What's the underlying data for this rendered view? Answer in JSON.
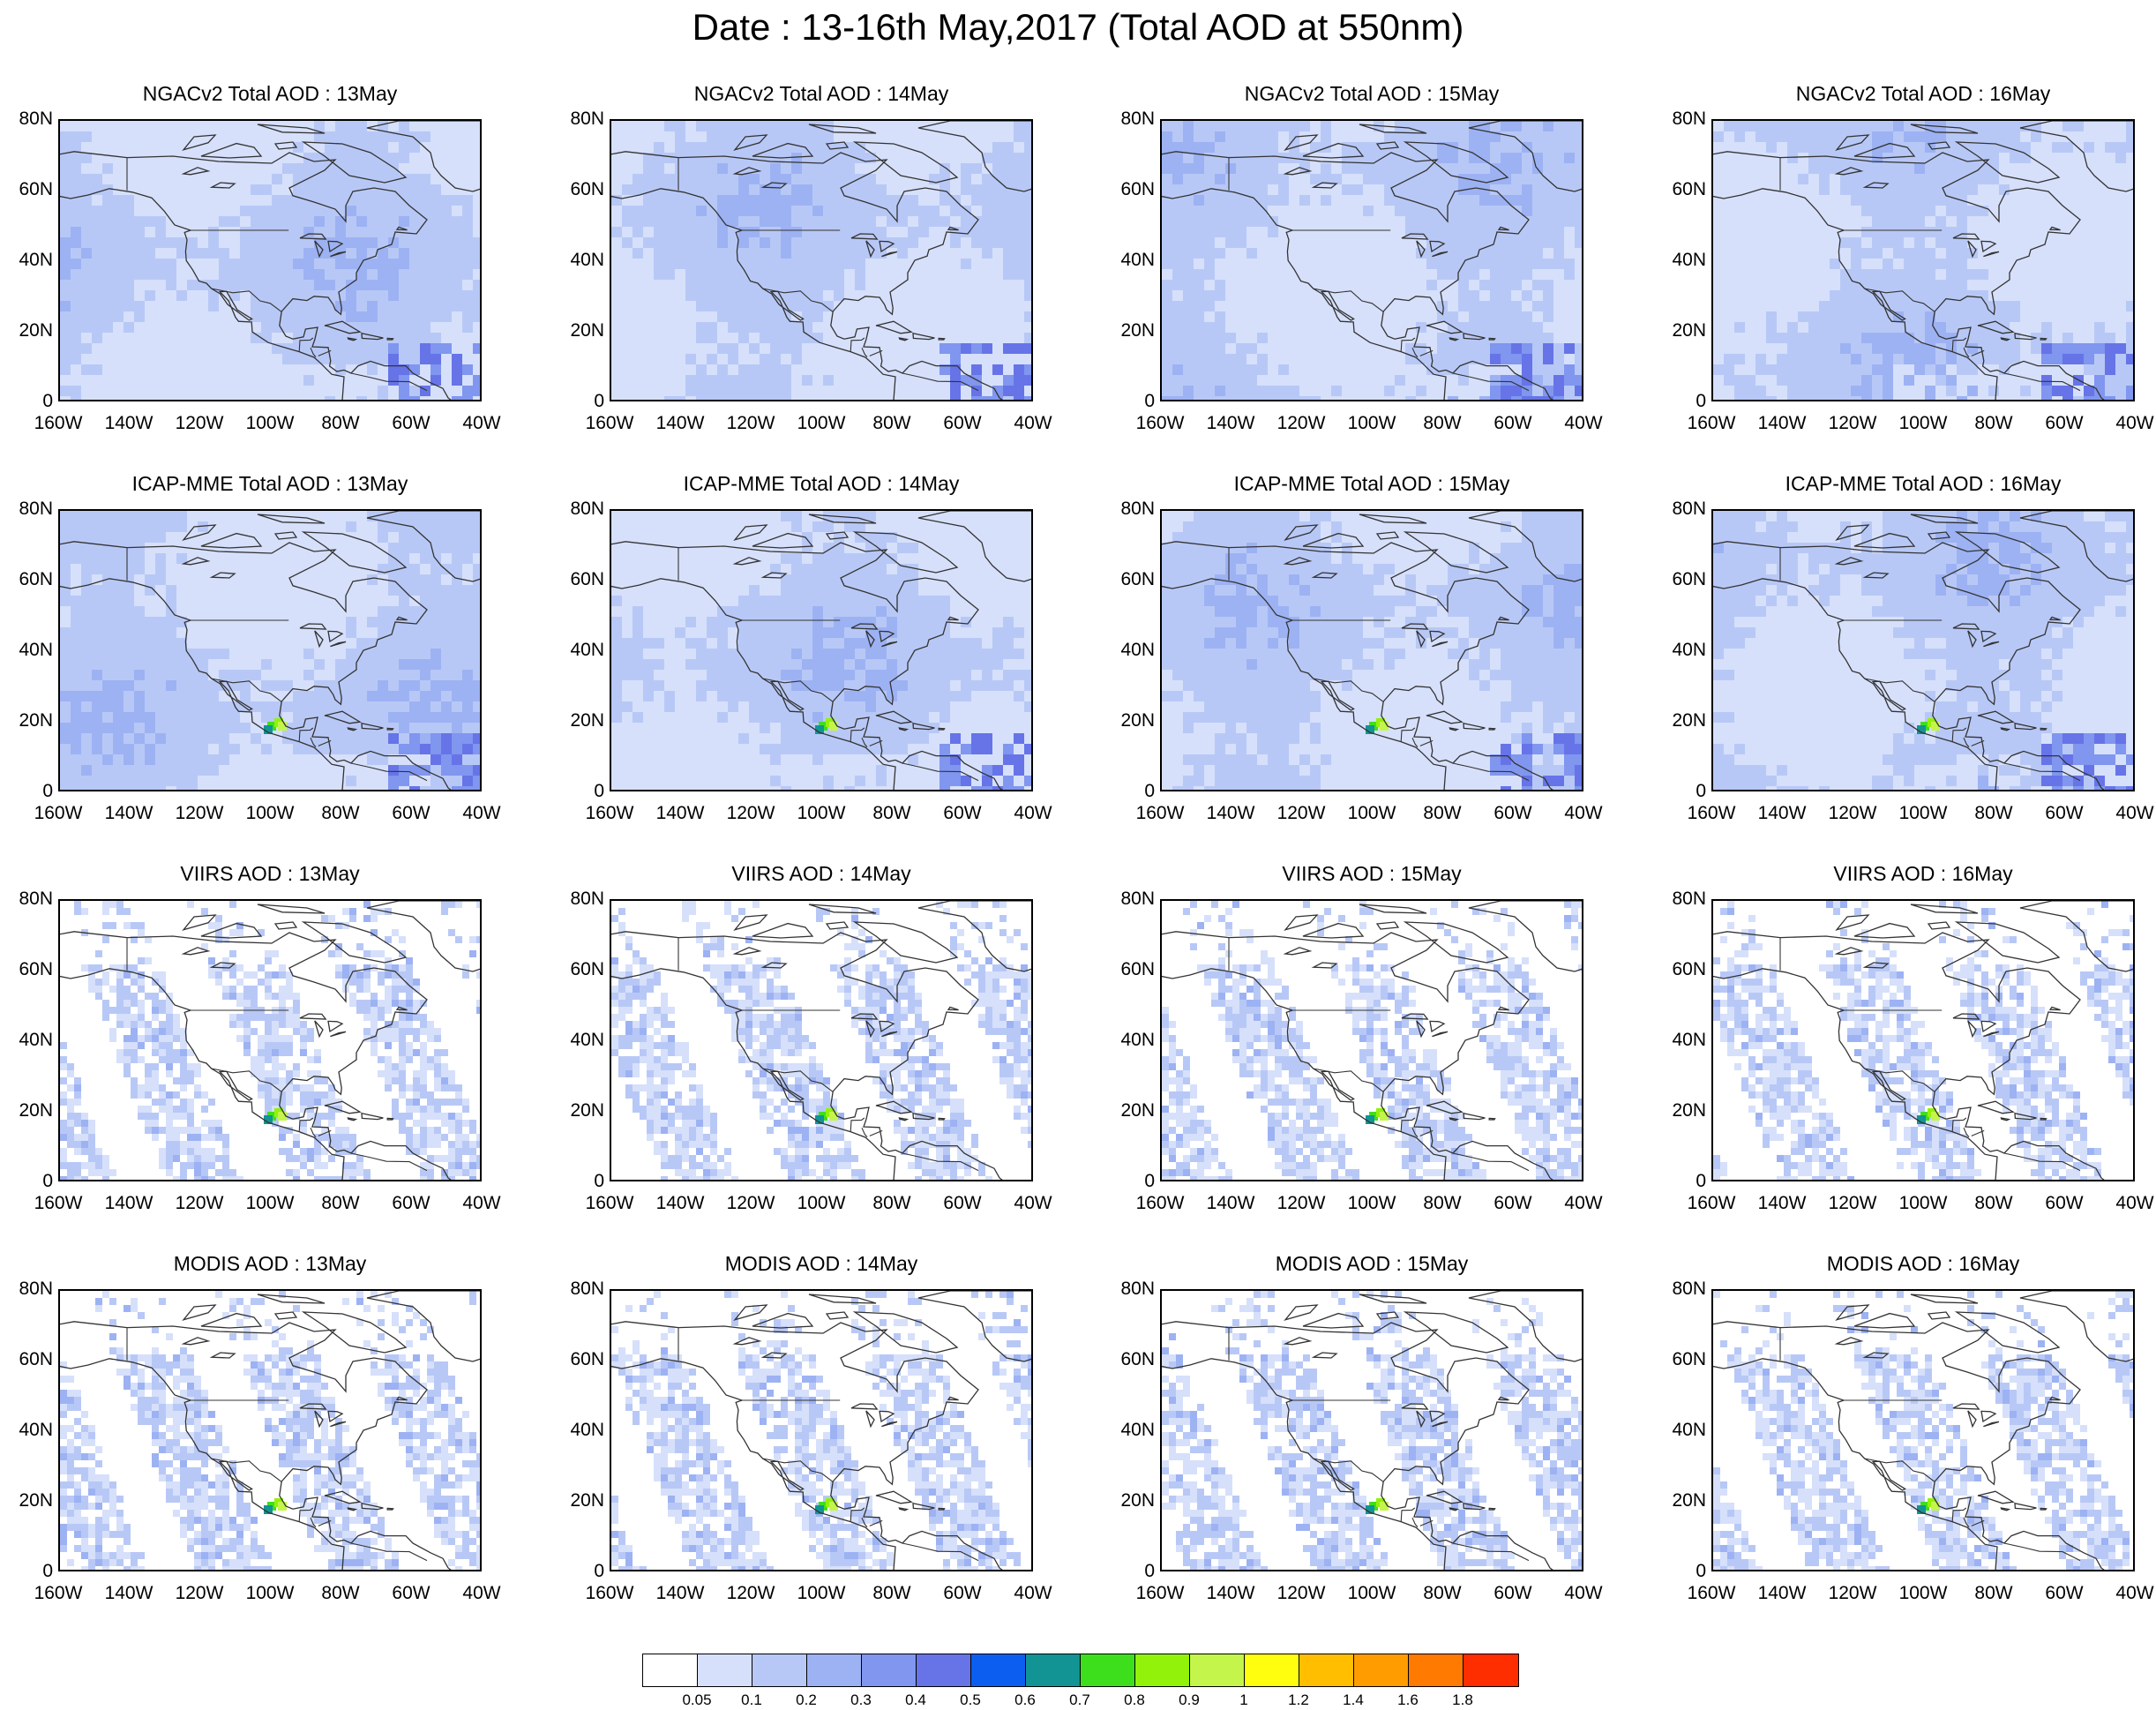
{
  "title": "Date : 13-16th May,2017 (Total AOD at 550nm)",
  "panels": [
    {
      "title": "NGACv2 Total AOD : 13May",
      "kind": "model",
      "hotspot": 0
    },
    {
      "title": "NGACv2 Total AOD : 14May",
      "kind": "model",
      "hotspot": 0
    },
    {
      "title": "NGACv2 Total AOD : 15May",
      "kind": "model",
      "hotspot": 0
    },
    {
      "title": "NGACv2 Total AOD : 16May",
      "kind": "model",
      "hotspot": 0
    },
    {
      "title": "ICAP-MME Total AOD : 13May",
      "kind": "model",
      "hotspot": 1
    },
    {
      "title": "ICAP-MME Total AOD : 14May",
      "kind": "model",
      "hotspot": 1
    },
    {
      "title": "ICAP-MME Total AOD : 15May",
      "kind": "model",
      "hotspot": 1
    },
    {
      "title": "ICAP-MME Total AOD : 16May",
      "kind": "model",
      "hotspot": 1
    },
    {
      "title": "VIIRS AOD : 13May",
      "kind": "satellite",
      "hotspot": 1
    },
    {
      "title": "VIIRS AOD : 14May",
      "kind": "satellite",
      "hotspot": 1
    },
    {
      "title": "VIIRS AOD : 15May",
      "kind": "satellite",
      "hotspot": 1
    },
    {
      "title": "VIIRS AOD : 16May",
      "kind": "satellite",
      "hotspot": 1
    },
    {
      "title": "MODIS AOD : 13May",
      "kind": "satellite",
      "hotspot": 1
    },
    {
      "title": "MODIS AOD : 14May",
      "kind": "satellite",
      "hotspot": 1
    },
    {
      "title": "MODIS AOD : 15May",
      "kind": "satellite",
      "hotspot": 1
    },
    {
      "title": "MODIS AOD : 16May",
      "kind": "satellite",
      "hotspot": 1
    }
  ],
  "lat_ticks": [
    "80N",
    "60N",
    "40N",
    "20N",
    "0"
  ],
  "lon_ticks": [
    "160W",
    "140W",
    "120W",
    "100W",
    "80W",
    "60W",
    "40W"
  ],
  "colorbar": {
    "colors": [
      "#ffffff",
      "#d6e0fb",
      "#b8c8f6",
      "#9db2f3",
      "#8096ef",
      "#6674e8",
      "#0c5ef0",
      "#129394",
      "#3ddf1d",
      "#93f20a",
      "#c4f54b",
      "#fffe0f",
      "#ffbf00",
      "#ff9d00",
      "#ff7a00",
      "#ff2e00"
    ],
    "labels": [
      "0.05",
      "0.1",
      "0.2",
      "0.3",
      "0.4",
      "0.5",
      "0.6",
      "0.7",
      "0.8",
      "0.9",
      "1",
      "1.2",
      "1.4",
      "1.6",
      "1.8"
    ]
  }
}
